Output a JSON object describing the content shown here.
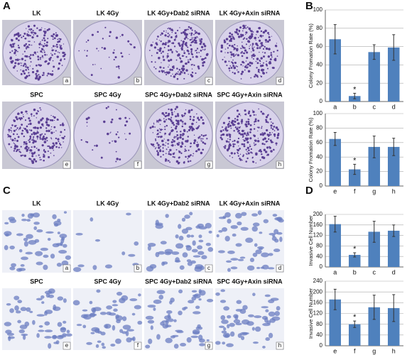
{
  "letters": [
    "A",
    "B",
    "C",
    "D"
  ],
  "panels": [
    {
      "kind": "colony",
      "rows": [
        [
          {
            "title": "LK",
            "tag": "a"
          },
          {
            "title": "LK 4Gy",
            "tag": "b"
          },
          {
            "title": "LK 4Gy+Dab2 siRNA",
            "tag": "c"
          },
          {
            "title": "LK 4Gy+Axin siRNA",
            "tag": "d"
          }
        ],
        [
          {
            "title": "SPC",
            "tag": "e"
          },
          {
            "title": "SPC 4Gy",
            "tag": "f"
          },
          {
            "title": "SPC 4Gy+Dab2 siRNA",
            "tag": "g"
          },
          {
            "title": "SPC 4Gy+Axin siRNA",
            "tag": "h"
          }
        ]
      ]
    },
    {
      "kind": "cells",
      "rows": [
        [
          {
            "title": "LK",
            "tag": "a"
          },
          {
            "title": "LK 4Gy",
            "tag": "b"
          },
          {
            "title": "LK 4Gy+Dab2 siRNA",
            "tag": "c"
          },
          {
            "title": "LK 4Gy+Axin siRNA",
            "tag": "d"
          }
        ],
        [
          {
            "title": "SPC",
            "tag": "e"
          },
          {
            "title": "SPC 4Gy",
            "tag": "f"
          },
          {
            "title": "SPC 4Gy+Dab2 siRNA",
            "tag": "g"
          },
          {
            "title": "SPC 4Gy+Axin siRNA",
            "tag": "h"
          }
        ]
      ]
    }
  ],
  "chart_data": [
    {
      "type": "bar",
      "ylabel": "Colony Fromation Rate (%)",
      "categories": [
        "a",
        "b",
        "c",
        "d"
      ],
      "values": [
        68,
        6,
        54,
        59
      ],
      "errors": [
        16,
        3,
        8,
        14
      ],
      "color": "#4f81bd",
      "ylim": [
        0,
        100
      ],
      "yticks": [
        0,
        20,
        40,
        60,
        80,
        100
      ],
      "grid": true,
      "annotation": {
        "text": "*",
        "category": "b"
      }
    },
    {
      "type": "bar",
      "ylabel": "Colony Fromation Rate (%)",
      "categories": [
        "e",
        "f",
        "g",
        "h"
      ],
      "values": [
        65,
        23,
        54,
        54
      ],
      "errors": [
        9,
        7,
        15,
        12
      ],
      "color": "#4f81bd",
      "ylim": [
        0,
        100
      ],
      "yticks": [
        0,
        20,
        40,
        60,
        80,
        100
      ],
      "grid": true,
      "annotation": {
        "text": "*",
        "category": "f"
      }
    },
    {
      "type": "bar",
      "ylabel": "Invasive Cell Number",
      "categories": [
        "a",
        "b",
        "c",
        "d"
      ],
      "values": [
        163,
        46,
        134,
        138
      ],
      "errors": [
        30,
        8,
        40,
        22
      ],
      "color": "#4f81bd",
      "ylim": [
        0,
        200
      ],
      "yticks": [
        0,
        40,
        80,
        120,
        160,
        200
      ],
      "grid": true,
      "annotation": {
        "text": "*",
        "category": "b"
      }
    },
    {
      "type": "bar",
      "ylabel": "Invasive Cell Number",
      "categories": [
        "e",
        "f",
        "g",
        "h"
      ],
      "values": [
        172,
        80,
        143,
        140
      ],
      "errors": [
        38,
        12,
        45,
        50
      ],
      "color": "#4f81bd",
      "ylim": [
        0,
        240
      ],
      "yticks": [
        0,
        40,
        80,
        120,
        160,
        200,
        240
      ],
      "grid": true,
      "annotation": {
        "text": "*",
        "category": "f"
      }
    }
  ]
}
